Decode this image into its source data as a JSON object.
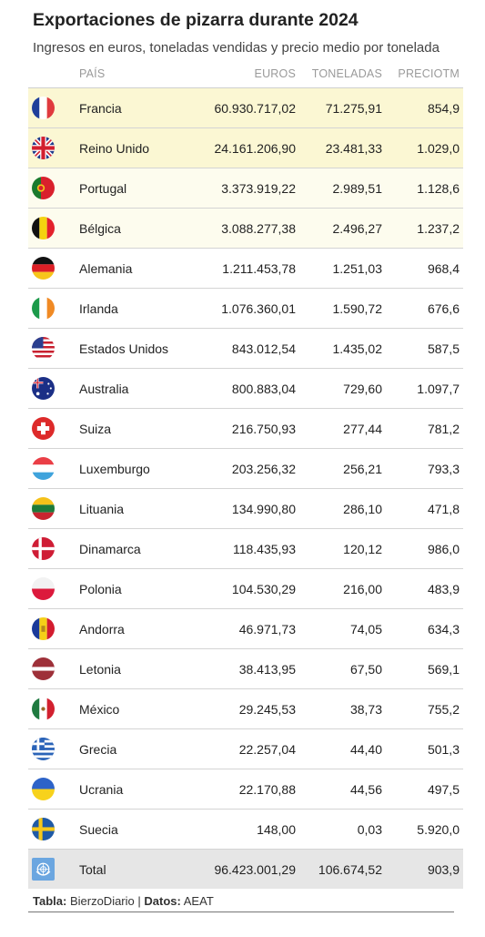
{
  "title": "Exportaciones de pizarra durante 2024",
  "subtitle": "Ingresos en euros, toneladas vendidas y precio medio por tonelada",
  "headers": {
    "country": "PAÍS",
    "euros": "EUROS",
    "toneladas": "TONELADAS",
    "precio": "PRECIOTM"
  },
  "source": {
    "table_label": "Tabla:",
    "table_value": "BierzoDiario",
    "sep": "|",
    "data_label": "Datos:",
    "data_value": "AEAT"
  },
  "highlight_colors": {
    "top2": "#fbf7d3",
    "next2": "#fdfcee",
    "total": "#e6e6e6"
  },
  "chart_data": {
    "type": "table",
    "title": "Exportaciones de pizarra durante 2024",
    "subtitle": "Ingresos en euros, toneladas vendidas y precio medio por tonelada",
    "columns": [
      "PAÍS",
      "EUROS",
      "TONELADAS",
      "PRECIOTM"
    ],
    "rows": [
      {
        "flag": "france-flag-icon",
        "pais": "Francia",
        "euros": "60.930.717,02",
        "toneladas": "71.275,91",
        "precio": "854,9"
      },
      {
        "flag": "united-kingdom-flag-icon",
        "pais": "Reino Unido",
        "euros": "24.161.206,90",
        "toneladas": "23.481,33",
        "precio": "1.029,0"
      },
      {
        "flag": "portugal-flag-icon",
        "pais": "Portugal",
        "euros": "3.373.919,22",
        "toneladas": "2.989,51",
        "precio": "1.128,6"
      },
      {
        "flag": "belgium-flag-icon",
        "pais": "Bélgica",
        "euros": "3.088.277,38",
        "toneladas": "2.496,27",
        "precio": "1.237,2"
      },
      {
        "flag": "germany-flag-icon",
        "pais": "Alemania",
        "euros": "1.211.453,78",
        "toneladas": "1.251,03",
        "precio": "968,4"
      },
      {
        "flag": "ireland-flag-icon",
        "pais": "Irlanda",
        "euros": "1.076.360,01",
        "toneladas": "1.590,72",
        "precio": "676,6"
      },
      {
        "flag": "united-states-flag-icon",
        "pais": "Estados Unidos",
        "euros": "843.012,54",
        "toneladas": "1.435,02",
        "precio": "587,5"
      },
      {
        "flag": "australia-flag-icon",
        "pais": "Australia",
        "euros": "800.883,04",
        "toneladas": "729,60",
        "precio": "1.097,7"
      },
      {
        "flag": "switzerland-flag-icon",
        "pais": "Suiza",
        "euros": "216.750,93",
        "toneladas": "277,44",
        "precio": "781,2"
      },
      {
        "flag": "luxembourg-flag-icon",
        "pais": "Luxemburgo",
        "euros": "203.256,32",
        "toneladas": "256,21",
        "precio": "793,3"
      },
      {
        "flag": "lithuania-flag-icon",
        "pais": "Lituania",
        "euros": "134.990,80",
        "toneladas": "286,10",
        "precio": "471,8"
      },
      {
        "flag": "denmark-flag-icon",
        "pais": "Dinamarca",
        "euros": "118.435,93",
        "toneladas": "120,12",
        "precio": "986,0"
      },
      {
        "flag": "poland-flag-icon",
        "pais": "Polonia",
        "euros": "104.530,29",
        "toneladas": "216,00",
        "precio": "483,9"
      },
      {
        "flag": "andorra-flag-icon",
        "pais": "Andorra",
        "euros": "46.971,73",
        "toneladas": "74,05",
        "precio": "634,3"
      },
      {
        "flag": "latvia-flag-icon",
        "pais": "Letonia",
        "euros": "38.413,95",
        "toneladas": "67,50",
        "precio": "569,1"
      },
      {
        "flag": "mexico-flag-icon",
        "pais": "México",
        "euros": "29.245,53",
        "toneladas": "38,73",
        "precio": "755,2"
      },
      {
        "flag": "greece-flag-icon",
        "pais": "Grecia",
        "euros": "22.257,04",
        "toneladas": "44,40",
        "precio": "501,3"
      },
      {
        "flag": "ukraine-flag-icon",
        "pais": "Ucrania",
        "euros": "22.170,88",
        "toneladas": "44,56",
        "precio": "497,5"
      },
      {
        "flag": "sweden-flag-icon",
        "pais": "Suecia",
        "euros": "148,00",
        "toneladas": "0,03",
        "precio": "5.920,0"
      }
    ],
    "total": {
      "flag": "united-nations-flag-icon",
      "pais": "Total",
      "euros": "96.423.001,29",
      "toneladas": "106.674,52",
      "precio": "903,9"
    }
  }
}
